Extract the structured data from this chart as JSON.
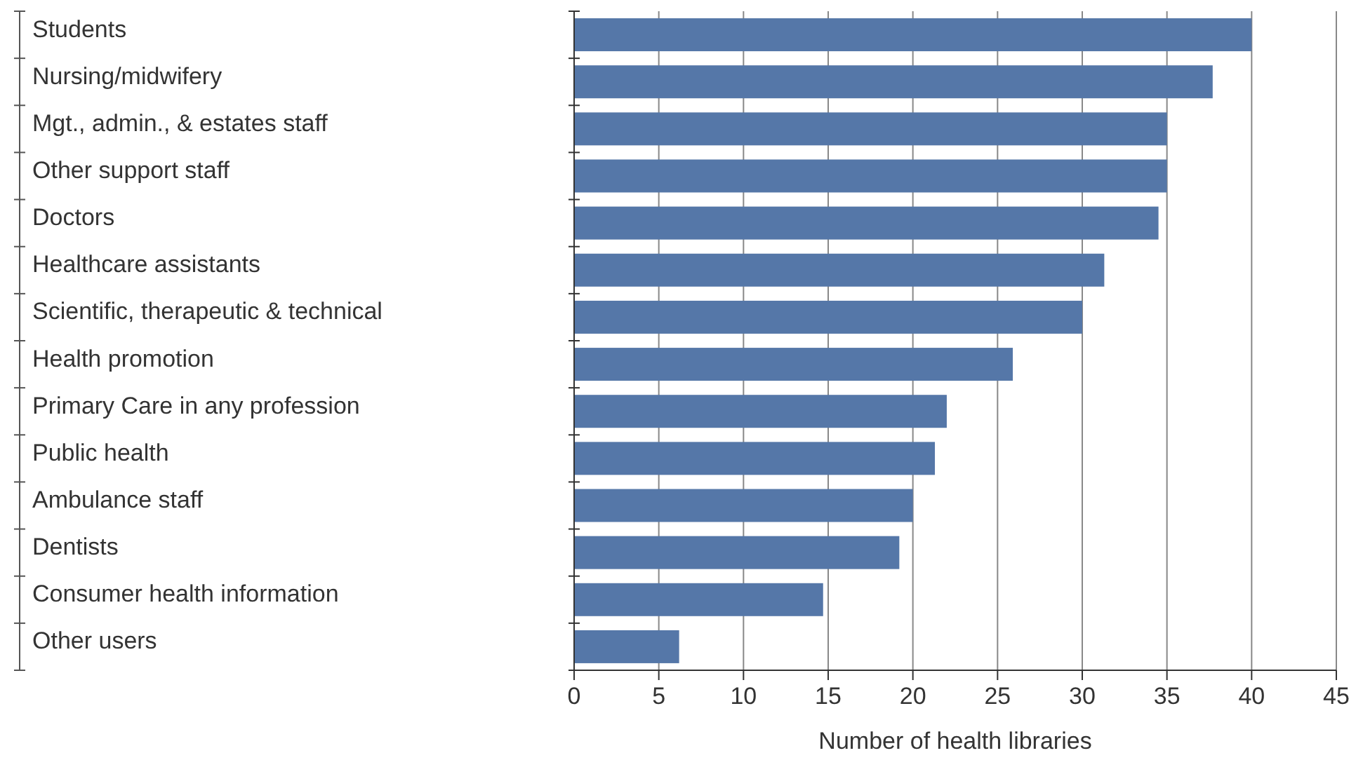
{
  "chart_data": {
    "type": "bar",
    "orientation": "horizontal",
    "xlabel": "Number of health libraries",
    "categories": [
      "Students",
      "Nursing/midwifery",
      "Mgt., admin., & estates staff",
      "Other support staff",
      "Doctors",
      "Healthcare assistants",
      "Scientific, therapeutic & technical",
      "Health promotion",
      "Primary Care in any profession",
      "Public health",
      "Ambulance staff",
      "Dentists",
      "Consumer health information",
      "Other users"
    ],
    "values": [
      40,
      37.7,
      35,
      35,
      34.5,
      31.3,
      30,
      25.9,
      22,
      21.3,
      20,
      19.2,
      14.7,
      6.2
    ],
    "color": "#5577a8",
    "xlim": [
      0,
      45
    ],
    "xticks": [
      0,
      5,
      10,
      15,
      20,
      25,
      30,
      35,
      40,
      45
    ],
    "grid": "x"
  }
}
